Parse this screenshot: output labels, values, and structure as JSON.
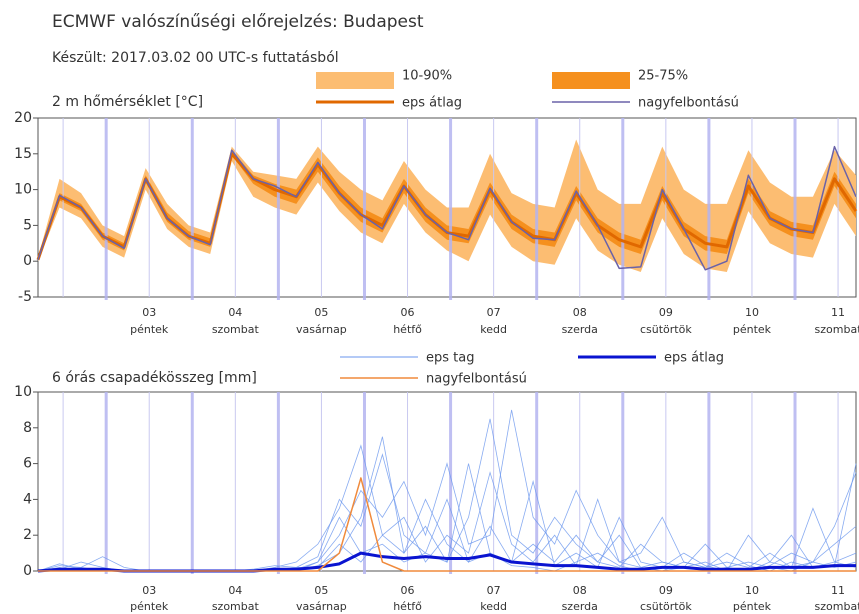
{
  "chart_data": [
    {
      "type": "line",
      "title": "ECMWF valószínűségi előrejelzés: Budapest",
      "subtitle": "Készült: 2017.03.02 00 UTC-s futtatásból",
      "ylabel": "2 m hőmérséklet [°C]",
      "x": [
        0,
        6,
        12,
        18,
        24,
        30,
        36,
        42,
        48,
        54,
        60,
        66,
        72,
        78,
        84,
        90,
        96,
        102,
        108,
        114,
        120,
        126,
        132,
        138,
        144,
        150,
        156,
        162,
        168,
        174,
        180,
        186,
        192,
        198,
        204,
        210,
        216,
        222,
        228
      ],
      "xlim": [
        0,
        228
      ],
      "xticks": [
        {
          "value": 19,
          "label": "03",
          "day": "péntek"
        },
        {
          "value": 43,
          "label": "04",
          "day": "szombat"
        },
        {
          "value": 67,
          "label": "05",
          "day": "vasárnap"
        },
        {
          "value": 91,
          "label": "06",
          "day": "hétfő"
        },
        {
          "value": 115,
          "label": "07",
          "day": "kedd"
        },
        {
          "value": 139,
          "label": "08",
          "day": "szerda"
        },
        {
          "value": 163,
          "label": "09",
          "day": "csütörtök"
        },
        {
          "value": 187,
          "label": "10",
          "day": "péntek"
        },
        {
          "value": 211,
          "label": "11",
          "day": "szombat"
        }
      ],
      "minor_xticks": [
        7,
        31,
        55,
        79,
        103,
        127,
        151,
        175,
        199,
        223
      ],
      "ylim": [
        -5,
        20
      ],
      "yticks": [
        -5,
        0,
        5,
        10,
        15,
        20
      ],
      "bands": [
        {
          "name": "10-90%",
          "color": "#fcbd72",
          "lower": [
            0,
            7.5,
            6,
            2,
            0.5,
            10,
            4.5,
            2,
            1,
            14,
            9,
            7.5,
            6.5,
            11,
            7,
            4,
            2.5,
            8,
            4,
            1.5,
            0,
            6.5,
            2,
            0,
            -0.5,
            6,
            1.5,
            -0.5,
            -1.5,
            6,
            1,
            -1,
            -1.5,
            7,
            2.5,
            1,
            0.5,
            8,
            3.5
          ],
          "upper": [
            0.5,
            11.5,
            9.5,
            5,
            3.5,
            13,
            8,
            5,
            4,
            16,
            12.5,
            12,
            11.5,
            16,
            12.5,
            10,
            8.5,
            14,
            10,
            7.5,
            7.5,
            15,
            9.5,
            8,
            7.5,
            17,
            10,
            8,
            8,
            16,
            10,
            8,
            8,
            15.5,
            11,
            9,
            9,
            15.5,
            12
          ]
        },
        {
          "name": "25-75%",
          "color": "#f5901e",
          "lower": [
            0.1,
            8.5,
            7,
            3,
            1.5,
            11,
            5.5,
            3,
            2,
            14.8,
            10.8,
            9,
            8,
            12.5,
            8.5,
            5.5,
            4,
            9.5,
            5.5,
            3,
            2.5,
            9,
            4.5,
            2.5,
            2,
            8.5,
            4,
            2,
            1,
            8.5,
            3.5,
            1.5,
            1,
            9.5,
            5,
            3.5,
            3,
            10.5,
            6
          ],
          "upper": [
            0.3,
            9.5,
            8,
            4,
            2.5,
            12,
            6.8,
            4.2,
            3.2,
            15.5,
            12,
            10.8,
            10,
            14.5,
            10.5,
            7.5,
            6,
            11.5,
            7.5,
            5,
            4.5,
            11,
            6.5,
            4.5,
            4,
            10.5,
            6,
            4,
            3,
            10.5,
            5.5,
            3.5,
            3,
            11.5,
            7,
            5.5,
            5,
            12.5,
            8
          ]
        }
      ],
      "series": [
        {
          "name": "eps átlag",
          "color": "#e06800",
          "width": 3,
          "values": [
            0.2,
            9,
            7.5,
            3.5,
            2,
            11.5,
            6,
            3.5,
            2.5,
            15,
            11.5,
            10,
            9,
            13.5,
            9.5,
            6.5,
            5,
            10.5,
            6.5,
            4,
            3.5,
            10,
            5.5,
            3.5,
            3,
            9.5,
            5,
            3,
            2,
            9.5,
            4.5,
            2.5,
            2,
            10.5,
            6,
            4.5,
            4,
            11.5,
            7
          ]
        },
        {
          "name": "nagyfelbontású",
          "color": "#6a62a8",
          "width": 1.5,
          "values": [
            0.2,
            9.2,
            7.5,
            3.5,
            1.8,
            11.5,
            6,
            3.5,
            2.3,
            15.5,
            11.5,
            10.5,
            9,
            13.8,
            9.5,
            6.5,
            4.5,
            10.5,
            6.5,
            4,
            3,
            10.2,
            5.5,
            3.2,
            3,
            9.8,
            5,
            -1,
            -0.8,
            10,
            4.5,
            -1.2,
            0,
            12,
            6,
            4.5,
            4,
            16,
            9
          ]
        }
      ]
    },
    {
      "type": "line",
      "ylabel": "6 órás csapadékösszeg [mm]",
      "x": [
        0,
        6,
        12,
        18,
        24,
        30,
        36,
        42,
        48,
        54,
        60,
        66,
        72,
        78,
        84,
        90,
        96,
        102,
        108,
        114,
        120,
        126,
        132,
        138,
        144,
        150,
        156,
        162,
        168,
        174,
        180,
        186,
        192,
        198,
        204,
        210,
        216,
        222,
        228
      ],
      "xlim": [
        0,
        228
      ],
      "xticks": [
        {
          "value": 19,
          "label": "03",
          "day": "péntek"
        },
        {
          "value": 43,
          "label": "04",
          "day": "szombat"
        },
        {
          "value": 67,
          "label": "05",
          "day": "vasárnap"
        },
        {
          "value": 91,
          "label": "06",
          "day": "hétfő"
        },
        {
          "value": 115,
          "label": "07",
          "day": "kedd"
        },
        {
          "value": 139,
          "label": "08",
          "day": "szerda"
        },
        {
          "value": 163,
          "label": "09",
          "day": "csütörtök"
        },
        {
          "value": 187,
          "label": "10",
          "day": "péntek"
        },
        {
          "value": 211,
          "label": "11",
          "day": "szombat"
        }
      ],
      "minor_xticks": [
        7,
        31,
        55,
        79,
        103,
        127,
        151,
        175,
        199,
        223
      ],
      "ylim": [
        0,
        10
      ],
      "yticks": [
        0,
        2,
        4,
        6,
        8,
        10
      ],
      "members": {
        "name": "eps tag",
        "color": "#6a96ee",
        "values": [
          [
            0,
            0.3,
            0.2,
            0,
            0,
            0,
            0,
            0,
            0,
            0,
            0,
            0.2,
            0.5,
            1.5,
            3.5,
            7,
            2,
            1,
            4,
            1.5,
            0.5,
            1,
            0.3,
            0.2,
            0,
            0.5,
            1,
            0.3,
            0,
            0,
            0.2,
            0.5,
            0,
            0,
            0.3,
            1,
            0.5,
            2.5,
            5.5
          ],
          [
            0,
            0.1,
            0.5,
            0.2,
            0,
            0,
            0,
            0,
            0,
            0,
            0.1,
            0.3,
            0.2,
            0.8,
            4,
            2.5,
            6.5,
            2,
            1,
            0.5,
            3,
            8.5,
            2,
            1,
            3,
            1.5,
            0.5,
            2,
            0.2,
            0,
            0.5,
            0.2,
            1,
            0.3,
            0,
            0.5,
            0.2,
            0.3,
            6
          ],
          [
            0,
            0,
            0.2,
            0.8,
            0.2,
            0,
            0,
            0,
            0,
            0,
            0,
            0,
            0.1,
            0.5,
            2,
            4.5,
            3,
            5,
            2,
            6,
            1.5,
            2,
            9,
            3,
            1.5,
            4.5,
            2,
            0.5,
            1,
            3,
            0.5,
            0.2,
            0.5,
            0.2,
            1,
            0.2,
            0.5,
            0.2,
            0.5
          ],
          [
            0,
            0.2,
            0,
            0,
            0,
            0,
            0,
            0,
            0,
            0,
            0,
            0.1,
            0,
            0.3,
            1,
            3,
            7.5,
            1,
            2.5,
            0.5,
            6,
            1,
            0.5,
            5,
            0.3,
            1,
            0.2,
            3,
            0.5,
            0.2,
            1,
            0.3,
            0,
            2,
            0.5,
            0.2,
            3.5,
            0.5,
            0.2
          ],
          [
            0,
            0,
            0,
            0.1,
            0,
            0,
            0,
            0,
            0,
            0,
            0,
            0,
            0.2,
            0.2,
            1.5,
            0.5,
            2,
            3,
            0.5,
            2,
            1,
            5.5,
            1.5,
            0.5,
            2,
            0.3,
            4,
            0.5,
            0.2,
            0.5,
            0.2,
            1.5,
            0.2,
            0.5,
            0.2,
            0,
            0.5,
            1.5,
            2.5
          ],
          [
            0,
            0.4,
            0.1,
            0,
            0,
            0,
            0,
            0,
            0,
            0,
            0,
            0,
            0,
            0.5,
            3,
            1,
            1.5,
            0.5,
            1,
            4,
            0.5,
            2.5,
            0.5,
            1.5,
            0.5,
            2,
            0.5,
            0.2,
            1.5,
            0.5,
            0.2,
            0,
            0.2,
            0,
            0.5,
            2,
            0.2,
            0.5,
            1
          ]
        ]
      },
      "series": [
        {
          "name": "eps átlag",
          "color": "#0a14d0",
          "width": 3,
          "values": [
            0,
            0.1,
            0.1,
            0.1,
            0,
            0,
            0,
            0,
            0,
            0,
            0,
            0.1,
            0.1,
            0.2,
            0.4,
            1,
            0.8,
            0.7,
            0.8,
            0.7,
            0.7,
            0.9,
            0.5,
            0.4,
            0.3,
            0.3,
            0.2,
            0.1,
            0.1,
            0.2,
            0.2,
            0.1,
            0.1,
            0.1,
            0.2,
            0.2,
            0.2,
            0.3,
            0.3
          ]
        },
        {
          "name": "nagyfelbontású",
          "color": "#f08a3c",
          "width": 1.5,
          "values": [
            0,
            0,
            0,
            0,
            0,
            0,
            0,
            0,
            0,
            0,
            0,
            0,
            0,
            0,
            1,
            5.2,
            0.5,
            0,
            0,
            0,
            0,
            0,
            0,
            0,
            0,
            0,
            0,
            0,
            0,
            0,
            0,
            0,
            0,
            0,
            0,
            0,
            0,
            0,
            0
          ]
        }
      ]
    }
  ]
}
